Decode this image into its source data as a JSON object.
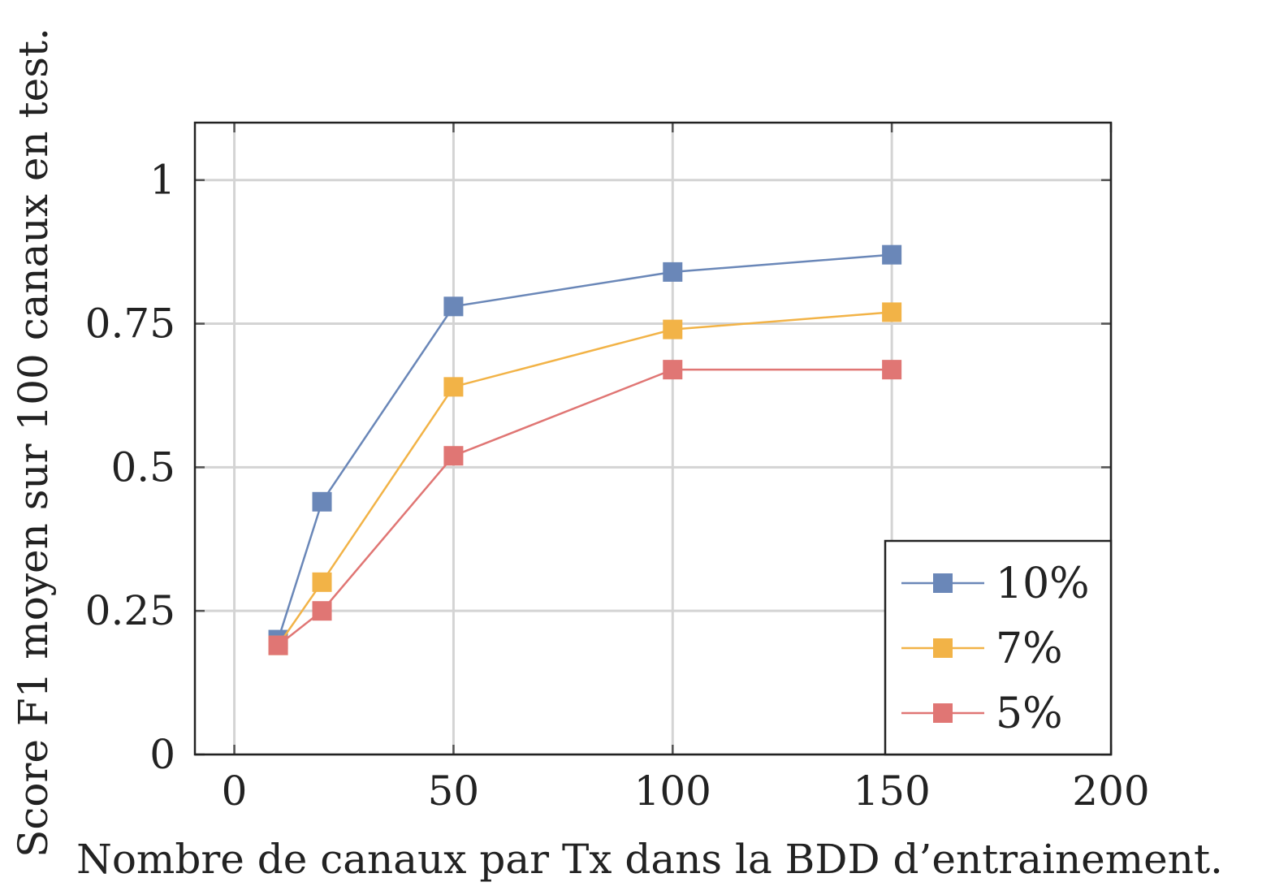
{
  "chart_data": {
    "type": "line",
    "xlabel": "Nombre de canaux par Tx dans la BDD d’entrainement.",
    "ylabel": "Score F1 moyen sur 100 canaux en test.",
    "xlim": [
      -9,
      200
    ],
    "ylim": [
      0,
      1.1
    ],
    "xticks": [
      0,
      50,
      100,
      150,
      200
    ],
    "xtick_labels": [
      "0",
      "50",
      "100",
      "150",
      "200"
    ],
    "yticks": [
      0,
      0.25,
      0.5,
      0.75,
      1
    ],
    "ytick_labels": [
      "0",
      "0.25",
      "0.5",
      "0.75",
      "1"
    ],
    "grid": true,
    "legend_position": "bottom-right",
    "series": [
      {
        "name": "10%",
        "color": "#6a87b8",
        "marker": "square",
        "x": [
          10,
          20,
          50,
          100,
          150
        ],
        "y": [
          0.2,
          0.44,
          0.78,
          0.84,
          0.87
        ]
      },
      {
        "name": "7%",
        "color": "#f2b347",
        "marker": "square",
        "x": [
          10,
          20,
          50,
          100,
          150
        ],
        "y": [
          0.19,
          0.3,
          0.64,
          0.74,
          0.77
        ]
      },
      {
        "name": "5%",
        "color": "#e07674",
        "marker": "square",
        "x": [
          10,
          20,
          50,
          100,
          150
        ],
        "y": [
          0.19,
          0.25,
          0.52,
          0.67,
          0.67
        ]
      }
    ]
  }
}
